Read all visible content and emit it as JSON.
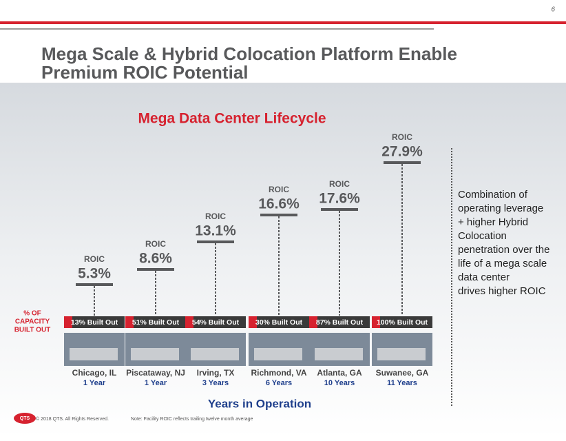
{
  "page_number": "6",
  "title": [
    "Mega Scale & Hybrid Colocation Platform Enable",
    "Premium ROIC Potential"
  ],
  "subtitle": "Mega Data Center Lifecycle",
  "capacity_label": [
    "% OF",
    "CAPACITY",
    "BUILT OUT"
  ],
  "sites": [
    {
      "roic_label": "ROIC",
      "roic": "5.3%",
      "built_out": "13% Built Out",
      "location": "Chicago, IL",
      "years": "1 Year"
    },
    {
      "roic_label": "ROIC",
      "roic": "8.6%",
      "built_out": "51% Built Out",
      "location": "Piscataway, NJ",
      "years": "1 Year"
    },
    {
      "roic_label": "ROIC",
      "roic": "13.1%",
      "built_out": "54% Built Out",
      "location": "Irving, TX",
      "years": "3 Years"
    },
    {
      "roic_label": "ROIC",
      "roic": "16.6%",
      "built_out": "30% Built Out",
      "location": "Richmond, VA",
      "years": "6 Years"
    },
    {
      "roic_label": "ROIC",
      "roic": "17.6%",
      "built_out": "87% Built Out",
      "location": "Atlanta, GA",
      "years": "10 Years"
    },
    {
      "roic_label": "ROIC",
      "roic": "27.9%",
      "built_out": "100% Built Out",
      "location": "Suwanee, GA",
      "years": "11 Years"
    }
  ],
  "x_axis_label": "Years in Operation",
  "side_text": [
    "Combination of",
    "operating leverage",
    "+ higher Hybrid",
    "Colocation",
    "penetration over the",
    "life of a mega scale",
    "data center",
    "drives higher ROIC"
  ],
  "footer": {
    "logo": "QTS",
    "copyright": "© 2018 QTS. All Rights Reserved.",
    "note": "Note: Facility ROIC reflects trailing twelve month average"
  }
}
